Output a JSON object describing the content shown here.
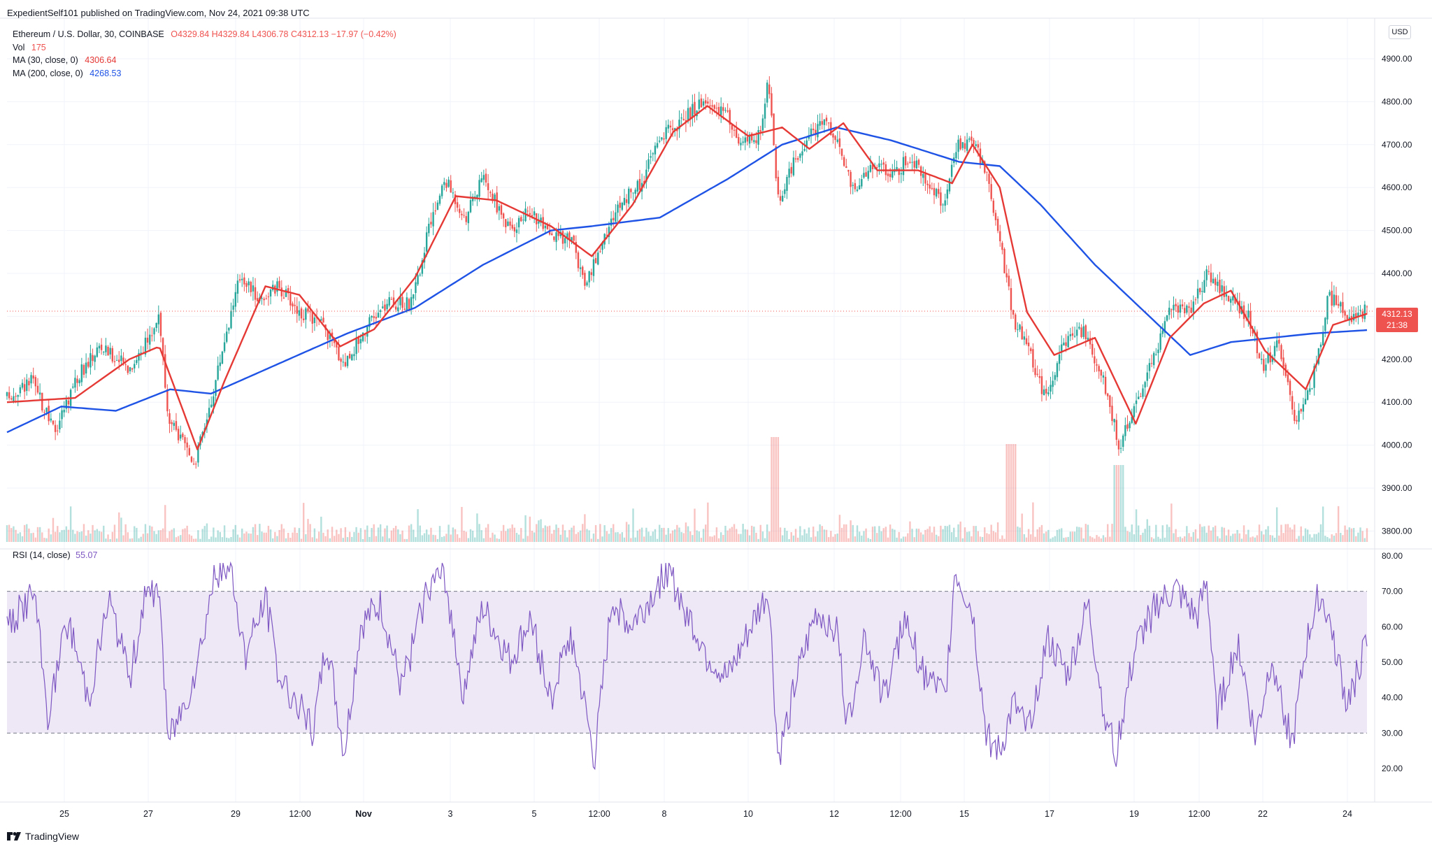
{
  "header": {
    "published": "ExpedientSelf101 published on TradingView.com, Nov 24, 2021 09:38 UTC"
  },
  "legend": {
    "symbol": "Ethereum / U.S. Dollar, 30, COINBASE",
    "ohlc": {
      "O": "O4329.84",
      "H": "H4329.84",
      "L": "L4306.78",
      "C": "C4312.13",
      "change": "−17.97 (−0.42%)"
    },
    "vol_label": "Vol",
    "vol_value": "175",
    "ma30_label": "MA (30, close, 0)",
    "ma30_value": "4306.64",
    "ma200_label": "MA (200, close, 0)",
    "ma200_value": "4268.53"
  },
  "rsi_legend": {
    "label": "RSI (14, close)",
    "value": "55.07"
  },
  "currency_badge": "USD",
  "last_price": {
    "price": "4312.13",
    "countdown": "21:38"
  },
  "brand": "TradingView",
  "colors": {
    "up": "#26a69a",
    "down": "#ef5350",
    "ma30": "#e53935",
    "ma200": "#1e53e5",
    "rsi": "#7e57c2",
    "rsi_band": "#ede7f6",
    "grid": "#f0f3fa"
  },
  "chart_data": [
    {
      "type": "candlestick",
      "title": "Ethereum / U.S. Dollar, 30, COINBASE",
      "price_axis_ticks": [
        "4900.00",
        "4800.00",
        "4700.00",
        "4600.00",
        "4500.00",
        "4400.00",
        "4300.00",
        "4200.00",
        "4100.00",
        "4000.00",
        "3900.00",
        "3800.00"
      ],
      "ylim": [
        3800,
        4900
      ],
      "x_ticks": [
        "25",
        "27",
        "29",
        "12:00",
        "Nov",
        "3",
        "5",
        "12:00",
        "8",
        "10",
        "12",
        "12:00",
        "15",
        "17",
        "19",
        "12:00",
        "22",
        "24"
      ],
      "close_path": [
        {
          "x": 0,
          "y": 4110
        },
        {
          "x": 0.018,
          "y": 4150
        },
        {
          "x": 0.035,
          "y": 4030
        },
        {
          "x": 0.05,
          "y": 4150
        },
        {
          "x": 0.068,
          "y": 4230
        },
        {
          "x": 0.09,
          "y": 4180
        },
        {
          "x": 0.105,
          "y": 4250
        },
        {
          "x": 0.112,
          "y": 4310
        },
        {
          "x": 0.118,
          "y": 4060
        },
        {
          "x": 0.138,
          "y": 3960
        },
        {
          "x": 0.15,
          "y": 4100
        },
        {
          "x": 0.16,
          "y": 4250
        },
        {
          "x": 0.172,
          "y": 4400
        },
        {
          "x": 0.185,
          "y": 4340
        },
        {
          "x": 0.2,
          "y": 4370
        },
        {
          "x": 0.215,
          "y": 4310
        },
        {
          "x": 0.232,
          "y": 4280
        },
        {
          "x": 0.248,
          "y": 4190
        },
        {
          "x": 0.263,
          "y": 4270
        },
        {
          "x": 0.28,
          "y": 4330
        },
        {
          "x": 0.298,
          "y": 4330
        },
        {
          "x": 0.31,
          "y": 4500
        },
        {
          "x": 0.322,
          "y": 4620
        },
        {
          "x": 0.337,
          "y": 4530
        },
        {
          "x": 0.35,
          "y": 4620
        },
        {
          "x": 0.37,
          "y": 4500
        },
        {
          "x": 0.385,
          "y": 4550
        },
        {
          "x": 0.4,
          "y": 4480
        },
        {
          "x": 0.415,
          "y": 4490
        },
        {
          "x": 0.425,
          "y": 4360
        },
        {
          "x": 0.437,
          "y": 4470
        },
        {
          "x": 0.45,
          "y": 4560
        },
        {
          "x": 0.468,
          "y": 4620
        },
        {
          "x": 0.48,
          "y": 4720
        },
        {
          "x": 0.495,
          "y": 4750
        },
        {
          "x": 0.51,
          "y": 4800
        },
        {
          "x": 0.527,
          "y": 4780
        },
        {
          "x": 0.54,
          "y": 4700
        },
        {
          "x": 0.553,
          "y": 4720
        },
        {
          "x": 0.56,
          "y": 4850
        },
        {
          "x": 0.567,
          "y": 4570
        },
        {
          "x": 0.573,
          "y": 4620
        },
        {
          "x": 0.585,
          "y": 4700
        },
        {
          "x": 0.6,
          "y": 4760
        },
        {
          "x": 0.61,
          "y": 4720
        },
        {
          "x": 0.623,
          "y": 4580
        },
        {
          "x": 0.637,
          "y": 4660
        },
        {
          "x": 0.65,
          "y": 4630
        },
        {
          "x": 0.665,
          "y": 4670
        },
        {
          "x": 0.68,
          "y": 4600
        },
        {
          "x": 0.69,
          "y": 4560
        },
        {
          "x": 0.698,
          "y": 4700
        },
        {
          "x": 0.71,
          "y": 4710
        },
        {
          "x": 0.72,
          "y": 4640
        },
        {
          "x": 0.73,
          "y": 4480
        },
        {
          "x": 0.74,
          "y": 4290
        },
        {
          "x": 0.75,
          "y": 4240
        },
        {
          "x": 0.763,
          "y": 4110
        },
        {
          "x": 0.778,
          "y": 4240
        },
        {
          "x": 0.792,
          "y": 4270
        },
        {
          "x": 0.805,
          "y": 4160
        },
        {
          "x": 0.818,
          "y": 4000
        },
        {
          "x": 0.83,
          "y": 4100
        },
        {
          "x": 0.843,
          "y": 4200
        },
        {
          "x": 0.856,
          "y": 4320
        },
        {
          "x": 0.87,
          "y": 4320
        },
        {
          "x": 0.883,
          "y": 4400
        },
        {
          "x": 0.9,
          "y": 4340
        },
        {
          "x": 0.913,
          "y": 4300
        },
        {
          "x": 0.923,
          "y": 4180
        },
        {
          "x": 0.935,
          "y": 4240
        },
        {
          "x": 0.948,
          "y": 4050
        },
        {
          "x": 0.96,
          "y": 4150
        },
        {
          "x": 0.972,
          "y": 4350
        },
        {
          "x": 0.985,
          "y": 4300
        },
        {
          "x": 1,
          "y": 4312
        }
      ],
      "ma30_path": [
        {
          "x": 0,
          "y": 4100
        },
        {
          "x": 0.05,
          "y": 4110
        },
        {
          "x": 0.09,
          "y": 4200
        },
        {
          "x": 0.112,
          "y": 4230
        },
        {
          "x": 0.14,
          "y": 3990
        },
        {
          "x": 0.16,
          "y": 4150
        },
        {
          "x": 0.19,
          "y": 4370
        },
        {
          "x": 0.215,
          "y": 4350
        },
        {
          "x": 0.245,
          "y": 4230
        },
        {
          "x": 0.27,
          "y": 4270
        },
        {
          "x": 0.3,
          "y": 4390
        },
        {
          "x": 0.33,
          "y": 4580
        },
        {
          "x": 0.36,
          "y": 4570
        },
        {
          "x": 0.4,
          "y": 4510
        },
        {
          "x": 0.43,
          "y": 4440
        },
        {
          "x": 0.46,
          "y": 4560
        },
        {
          "x": 0.49,
          "y": 4730
        },
        {
          "x": 0.515,
          "y": 4790
        },
        {
          "x": 0.545,
          "y": 4720
        },
        {
          "x": 0.57,
          "y": 4740
        },
        {
          "x": 0.59,
          "y": 4690
        },
        {
          "x": 0.615,
          "y": 4750
        },
        {
          "x": 0.64,
          "y": 4640
        },
        {
          "x": 0.67,
          "y": 4640
        },
        {
          "x": 0.695,
          "y": 4610
        },
        {
          "x": 0.71,
          "y": 4700
        },
        {
          "x": 0.73,
          "y": 4600
        },
        {
          "x": 0.75,
          "y": 4310
        },
        {
          "x": 0.77,
          "y": 4210
        },
        {
          "x": 0.8,
          "y": 4250
        },
        {
          "x": 0.83,
          "y": 4050
        },
        {
          "x": 0.855,
          "y": 4250
        },
        {
          "x": 0.88,
          "y": 4330
        },
        {
          "x": 0.9,
          "y": 4360
        },
        {
          "x": 0.925,
          "y": 4220
        },
        {
          "x": 0.955,
          "y": 4130
        },
        {
          "x": 0.975,
          "y": 4280
        },
        {
          "x": 1,
          "y": 4306
        }
      ],
      "ma200_path": [
        {
          "x": 0,
          "y": 4030
        },
        {
          "x": 0.04,
          "y": 4090
        },
        {
          "x": 0.08,
          "y": 4080
        },
        {
          "x": 0.12,
          "y": 4130
        },
        {
          "x": 0.15,
          "y": 4120
        },
        {
          "x": 0.2,
          "y": 4190
        },
        {
          "x": 0.25,
          "y": 4260
        },
        {
          "x": 0.3,
          "y": 4320
        },
        {
          "x": 0.35,
          "y": 4420
        },
        {
          "x": 0.4,
          "y": 4500
        },
        {
          "x": 0.43,
          "y": 4510
        },
        {
          "x": 0.48,
          "y": 4530
        },
        {
          "x": 0.53,
          "y": 4620
        },
        {
          "x": 0.57,
          "y": 4700
        },
        {
          "x": 0.61,
          "y": 4740
        },
        {
          "x": 0.65,
          "y": 4710
        },
        {
          "x": 0.7,
          "y": 4660
        },
        {
          "x": 0.73,
          "y": 4650
        },
        {
          "x": 0.76,
          "y": 4560
        },
        {
          "x": 0.8,
          "y": 4420
        },
        {
          "x": 0.84,
          "y": 4300
        },
        {
          "x": 0.87,
          "y": 4210
        },
        {
          "x": 0.9,
          "y": 4240
        },
        {
          "x": 0.93,
          "y": 4250
        },
        {
          "x": 0.96,
          "y": 4260
        },
        {
          "x": 1,
          "y": 4268
        }
      ]
    },
    {
      "type": "line",
      "title": "RSI (14, close)",
      "y_ticks": [
        "80.00",
        "70.00",
        "60.00",
        "50.00",
        "40.00",
        "30.00",
        "20.00"
      ],
      "ylim": [
        15,
        80
      ],
      "band": [
        30,
        70
      ],
      "midline": 50,
      "rsi_keypoints": [
        {
          "x": 0,
          "y": 60
        },
        {
          "x": 0.02,
          "y": 70
        },
        {
          "x": 0.03,
          "y": 35
        },
        {
          "x": 0.045,
          "y": 62
        },
        {
          "x": 0.06,
          "y": 40
        },
        {
          "x": 0.075,
          "y": 68
        },
        {
          "x": 0.09,
          "y": 45
        },
        {
          "x": 0.1,
          "y": 66
        },
        {
          "x": 0.112,
          "y": 72
        },
        {
          "x": 0.118,
          "y": 28
        },
        {
          "x": 0.13,
          "y": 38
        },
        {
          "x": 0.14,
          "y": 50
        },
        {
          "x": 0.152,
          "y": 74
        },
        {
          "x": 0.165,
          "y": 76
        },
        {
          "x": 0.175,
          "y": 52
        },
        {
          "x": 0.19,
          "y": 68
        },
        {
          "x": 0.2,
          "y": 46
        },
        {
          "x": 0.215,
          "y": 38
        },
        {
          "x": 0.225,
          "y": 30
        },
        {
          "x": 0.235,
          "y": 56
        },
        {
          "x": 0.248,
          "y": 24
        },
        {
          "x": 0.26,
          "y": 60
        },
        {
          "x": 0.275,
          "y": 66
        },
        {
          "x": 0.29,
          "y": 42
        },
        {
          "x": 0.31,
          "y": 72
        },
        {
          "x": 0.322,
          "y": 74
        },
        {
          "x": 0.335,
          "y": 42
        },
        {
          "x": 0.35,
          "y": 65
        },
        {
          "x": 0.37,
          "y": 50
        },
        {
          "x": 0.385,
          "y": 62
        },
        {
          "x": 0.4,
          "y": 40
        },
        {
          "x": 0.415,
          "y": 58
        },
        {
          "x": 0.432,
          "y": 22
        },
        {
          "x": 0.445,
          "y": 68
        },
        {
          "x": 0.458,
          "y": 60
        },
        {
          "x": 0.47,
          "y": 66
        },
        {
          "x": 0.485,
          "y": 76
        },
        {
          "x": 0.5,
          "y": 64
        },
        {
          "x": 0.515,
          "y": 52
        },
        {
          "x": 0.53,
          "y": 45
        },
        {
          "x": 0.545,
          "y": 58
        },
        {
          "x": 0.56,
          "y": 70
        },
        {
          "x": 0.567,
          "y": 22
        },
        {
          "x": 0.58,
          "y": 44
        },
        {
          "x": 0.595,
          "y": 64
        },
        {
          "x": 0.61,
          "y": 60
        },
        {
          "x": 0.618,
          "y": 32
        },
        {
          "x": 0.63,
          "y": 58
        },
        {
          "x": 0.645,
          "y": 40
        },
        {
          "x": 0.66,
          "y": 62
        },
        {
          "x": 0.675,
          "y": 46
        },
        {
          "x": 0.69,
          "y": 40
        },
        {
          "x": 0.697,
          "y": 76
        },
        {
          "x": 0.71,
          "y": 64
        },
        {
          "x": 0.72,
          "y": 30
        },
        {
          "x": 0.73,
          "y": 24
        },
        {
          "x": 0.74,
          "y": 38
        },
        {
          "x": 0.75,
          "y": 30
        },
        {
          "x": 0.765,
          "y": 56
        },
        {
          "x": 0.78,
          "y": 46
        },
        {
          "x": 0.795,
          "y": 66
        },
        {
          "x": 0.805,
          "y": 40
        },
        {
          "x": 0.815,
          "y": 24
        },
        {
          "x": 0.83,
          "y": 54
        },
        {
          "x": 0.845,
          "y": 66
        },
        {
          "x": 0.86,
          "y": 70
        },
        {
          "x": 0.875,
          "y": 62
        },
        {
          "x": 0.882,
          "y": 72
        },
        {
          "x": 0.89,
          "y": 36
        },
        {
          "x": 0.905,
          "y": 56
        },
        {
          "x": 0.918,
          "y": 28
        },
        {
          "x": 0.93,
          "y": 52
        },
        {
          "x": 0.945,
          "y": 26
        },
        {
          "x": 0.955,
          "y": 54
        },
        {
          "x": 0.965,
          "y": 70
        },
        {
          "x": 0.975,
          "y": 58
        },
        {
          "x": 0.985,
          "y": 38
        },
        {
          "x": 1,
          "y": 55
        }
      ]
    }
  ]
}
